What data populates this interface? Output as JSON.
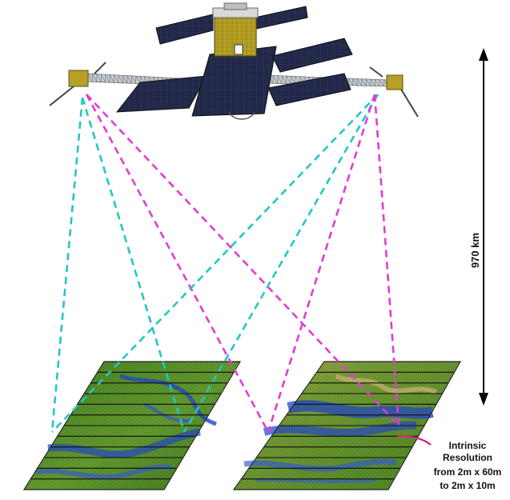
{
  "altitude": {
    "label": "970 km"
  },
  "resolution_note": {
    "lines": [
      "Intrinsic",
      "Resolution",
      "from 2m x 60m",
      "to 2m x 10m"
    ]
  },
  "colors": {
    "beam_cyan": "#22c7c4",
    "beam_magenta": "#e23bd6",
    "callout": "#e0207f",
    "panel": "#1f2442",
    "truss": "#c9cdd1",
    "bus": "#b6a126",
    "terrain_green": "#5c9a2a",
    "water_blue": "#2b4fd0"
  },
  "icons": {
    "satellite": "satellite-icon",
    "arrow": "double-headed-arrow"
  }
}
